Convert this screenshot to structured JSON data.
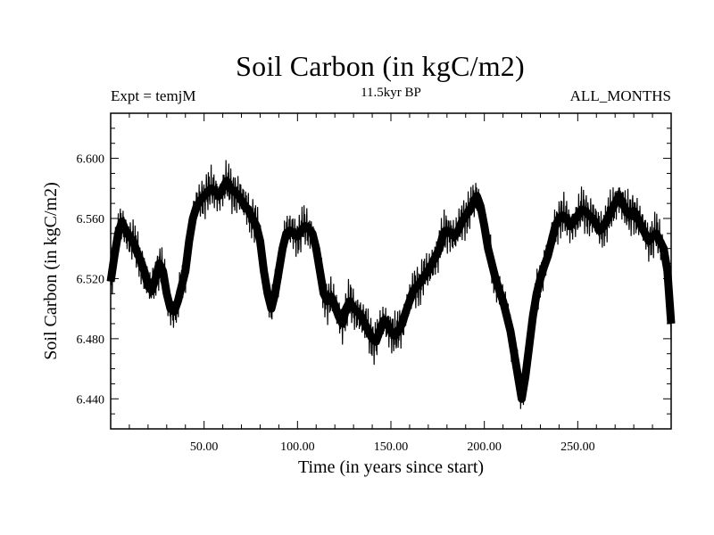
{
  "title": "Soil Carbon (in kgC/m2)",
  "experiment_label": "Expt = temjM",
  "period_label": "11.5kyr BP",
  "months_label": "ALL_MONTHS",
  "chart_data": {
    "type": "line",
    "title": "Soil Carbon (in kgC/m2)",
    "xlabel": "Time (in years since start)",
    "ylabel": "Soil Carbon (in kgC/m2)",
    "xlim": [
      0,
      300
    ],
    "ylim": [
      6.42,
      6.63
    ],
    "x_ticks": [
      50,
      100,
      150,
      200,
      250
    ],
    "x_tick_labels": [
      "50.00",
      "100.00",
      "150.00",
      "200.00",
      "250.00"
    ],
    "y_ticks": [
      6.44,
      6.48,
      6.52,
      6.56,
      6.6
    ],
    "y_tick_labels": [
      "6.440",
      "6.480",
      "6.520",
      "6.560",
      "6.600"
    ],
    "series": [
      {
        "name": "Soil Carbon",
        "color": "#000000",
        "x": [
          0,
          2,
          4,
          6,
          8,
          10,
          12,
          14,
          16,
          18,
          20,
          22,
          24,
          26,
          28,
          30,
          32,
          34,
          36,
          38,
          40,
          42,
          44,
          46,
          48,
          50,
          52,
          54,
          56,
          58,
          60,
          62,
          64,
          66,
          68,
          70,
          72,
          74,
          76,
          78,
          80,
          82,
          84,
          86,
          88,
          90,
          92,
          94,
          96,
          98,
          100,
          102,
          104,
          106,
          108,
          110,
          112,
          114,
          116,
          118,
          120,
          122,
          124,
          126,
          128,
          130,
          132,
          134,
          136,
          138,
          140,
          142,
          144,
          146,
          148,
          150,
          152,
          154,
          156,
          158,
          160,
          162,
          164,
          166,
          168,
          170,
          172,
          174,
          176,
          178,
          180,
          182,
          184,
          186,
          188,
          190,
          192,
          194,
          196,
          198,
          200,
          202,
          204,
          206,
          208,
          210,
          212,
          214,
          216,
          218,
          220,
          222,
          224,
          226,
          228,
          230,
          232,
          234,
          236,
          238,
          240,
          242,
          244,
          246,
          248,
          250,
          252,
          254,
          256,
          258,
          260,
          262,
          264,
          266,
          268,
          270,
          272,
          274,
          276,
          278,
          280,
          282,
          284,
          286,
          288,
          290,
          292,
          294,
          296,
          298,
          300
        ],
        "values": [
          6.518,
          6.535,
          6.55,
          6.558,
          6.552,
          6.548,
          6.545,
          6.538,
          6.532,
          6.525,
          6.515,
          6.512,
          6.52,
          6.53,
          6.525,
          6.51,
          6.5,
          6.498,
          6.505,
          6.515,
          6.525,
          6.545,
          6.56,
          6.568,
          6.572,
          6.575,
          6.578,
          6.58,
          6.578,
          6.575,
          6.58,
          6.585,
          6.58,
          6.578,
          6.576,
          6.572,
          6.568,
          6.565,
          6.56,
          6.555,
          6.545,
          6.525,
          6.51,
          6.5,
          6.51,
          6.525,
          6.54,
          6.55,
          6.552,
          6.55,
          6.548,
          6.552,
          6.555,
          6.553,
          6.55,
          6.54,
          6.525,
          6.51,
          6.505,
          6.508,
          6.502,
          6.495,
          6.49,
          6.5,
          6.505,
          6.5,
          6.498,
          6.495,
          6.49,
          6.485,
          6.48,
          6.478,
          6.485,
          6.492,
          6.49,
          6.485,
          6.482,
          6.485,
          6.49,
          6.498,
          6.505,
          6.512,
          6.515,
          6.518,
          6.522,
          6.525,
          6.53,
          6.535,
          6.54,
          6.55,
          6.552,
          6.55,
          6.548,
          6.552,
          6.558,
          6.562,
          6.565,
          6.57,
          6.575,
          6.568,
          6.555,
          6.54,
          6.53,
          6.52,
          6.512,
          6.505,
          6.495,
          6.485,
          6.47,
          6.455,
          6.44,
          6.455,
          6.475,
          6.495,
          6.51,
          6.52,
          6.528,
          6.535,
          6.545,
          6.555,
          6.56,
          6.562,
          6.56,
          6.555,
          6.558,
          6.562,
          6.566,
          6.565,
          6.562,
          6.56,
          6.556,
          6.552,
          6.555,
          6.56,
          6.565,
          6.57,
          6.575,
          6.57,
          6.565,
          6.562,
          6.565,
          6.56,
          6.555,
          6.55,
          6.545,
          6.548,
          6.55,
          6.545,
          6.54,
          6.525,
          6.49
        ]
      }
    ]
  }
}
